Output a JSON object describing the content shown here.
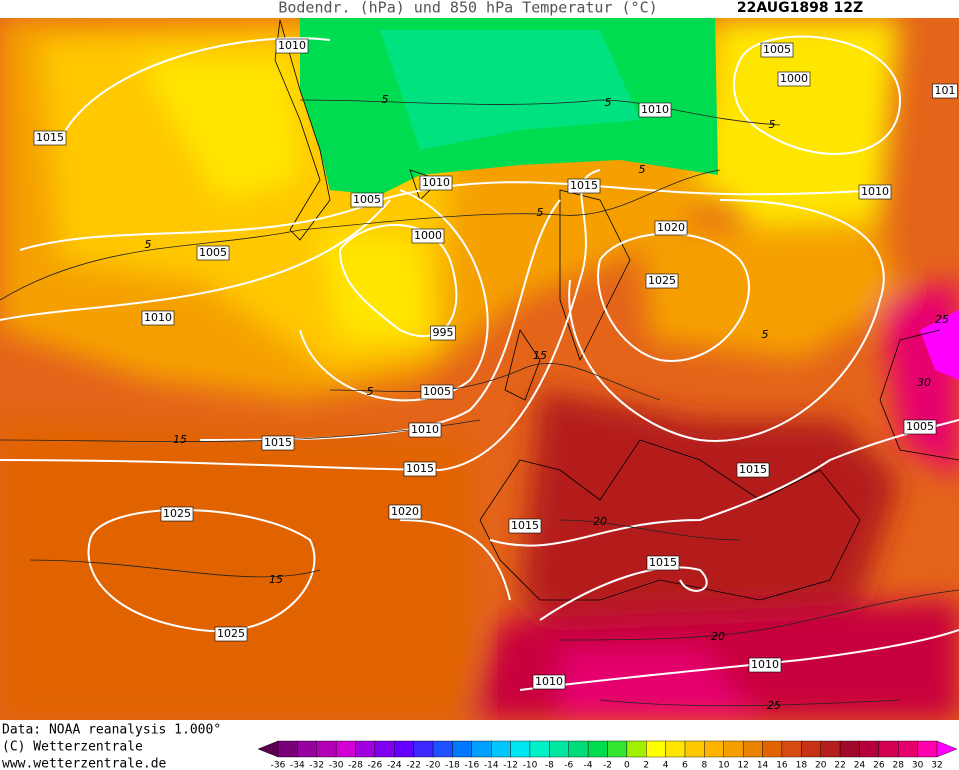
{
  "title": "Bodendr. (hPa) und 850 hPa Temperatur (°C)",
  "date": "22AUG1898 12Z",
  "footer": [
    "Data: NOAA reanalysis 1.000°",
    "(C) Wetterzentrale",
    "www.wetterzentrale.de"
  ],
  "colorbar": {
    "ticks": [
      -36,
      -34,
      -32,
      -30,
      -28,
      -26,
      -24,
      -22,
      -20,
      -18,
      -16,
      -14,
      -12,
      -10,
      -8,
      -6,
      -4,
      -2,
      0,
      2,
      4,
      6,
      8,
      10,
      12,
      14,
      16,
      18,
      20,
      22,
      24,
      26,
      28,
      30,
      32
    ],
    "colors": [
      "#5a0050",
      "#780078",
      "#9600a0",
      "#b400b4",
      "#d200d2",
      "#a000dc",
      "#8200f0",
      "#6400ff",
      "#3c28ff",
      "#1e50ff",
      "#0078ff",
      "#00a0ff",
      "#00c8ff",
      "#00e6f0",
      "#00f0c8",
      "#00e6a0",
      "#00dc78",
      "#00dc50",
      "#32e632",
      "#a0f000",
      "#ffff00",
      "#ffe600",
      "#ffc800",
      "#ffb400",
      "#f5a000",
      "#eb8200",
      "#e16400",
      "#d74b14",
      "#c83214",
      "#b41e1e",
      "#a00a28",
      "#b4003c",
      "#d20050",
      "#e6006e",
      "#ff00aa",
      "#ff00ff"
    ]
  },
  "isobar_labels": [
    1010,
    1015,
    1005,
    1010,
    1005,
    1010,
    1000,
    995,
    1005,
    1010,
    1015,
    1015,
    1020,
    1025,
    1025,
    1010,
    1015,
    1020,
    1025,
    1005,
    1000,
    101,
    1010,
    1005,
    1015,
    1015,
    1015,
    1010,
    1010
  ],
  "isotherm_labels": [
    5,
    5,
    5,
    5,
    5,
    5,
    5,
    5,
    15,
    15,
    15,
    20,
    20,
    25,
    25,
    30
  ]
}
